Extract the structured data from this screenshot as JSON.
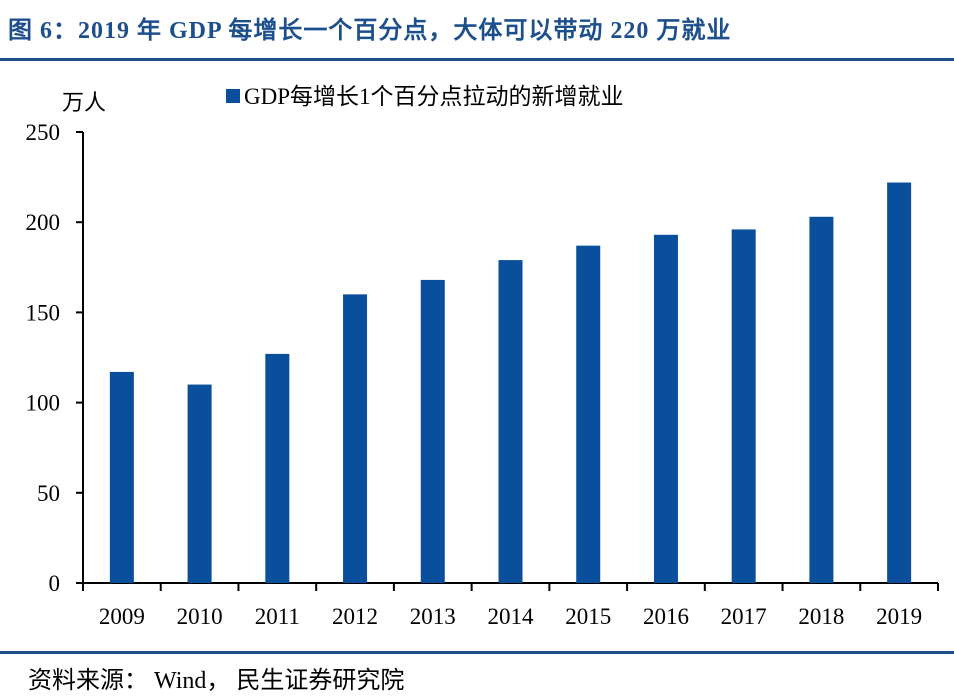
{
  "title": "图 6：2019 年 GDP 每增长一个百分点，大体可以带动 220 万就业",
  "source": "资料来源： Wind， 民生证券研究院",
  "colors": {
    "bar": "#0a4f9c",
    "title": "#1c4f8c"
  },
  "chart_data": {
    "type": "bar",
    "title": "",
    "ylabel": "万人",
    "xlabel": "",
    "categories": [
      "2009",
      "2010",
      "2011",
      "2012",
      "2013",
      "2014",
      "2015",
      "2016",
      "2017",
      "2018",
      "2019"
    ],
    "series": [
      {
        "name": "GDP每增长1个百分点拉动的新增就业",
        "values": [
          117,
          110,
          127,
          160,
          168,
          179,
          187,
          193,
          196,
          203,
          222
        ]
      }
    ],
    "ylim": [
      0,
      250
    ],
    "yticks": [
      "0",
      "50",
      "100",
      "150",
      "200",
      "250"
    ],
    "grid": false,
    "legend": "top"
  }
}
